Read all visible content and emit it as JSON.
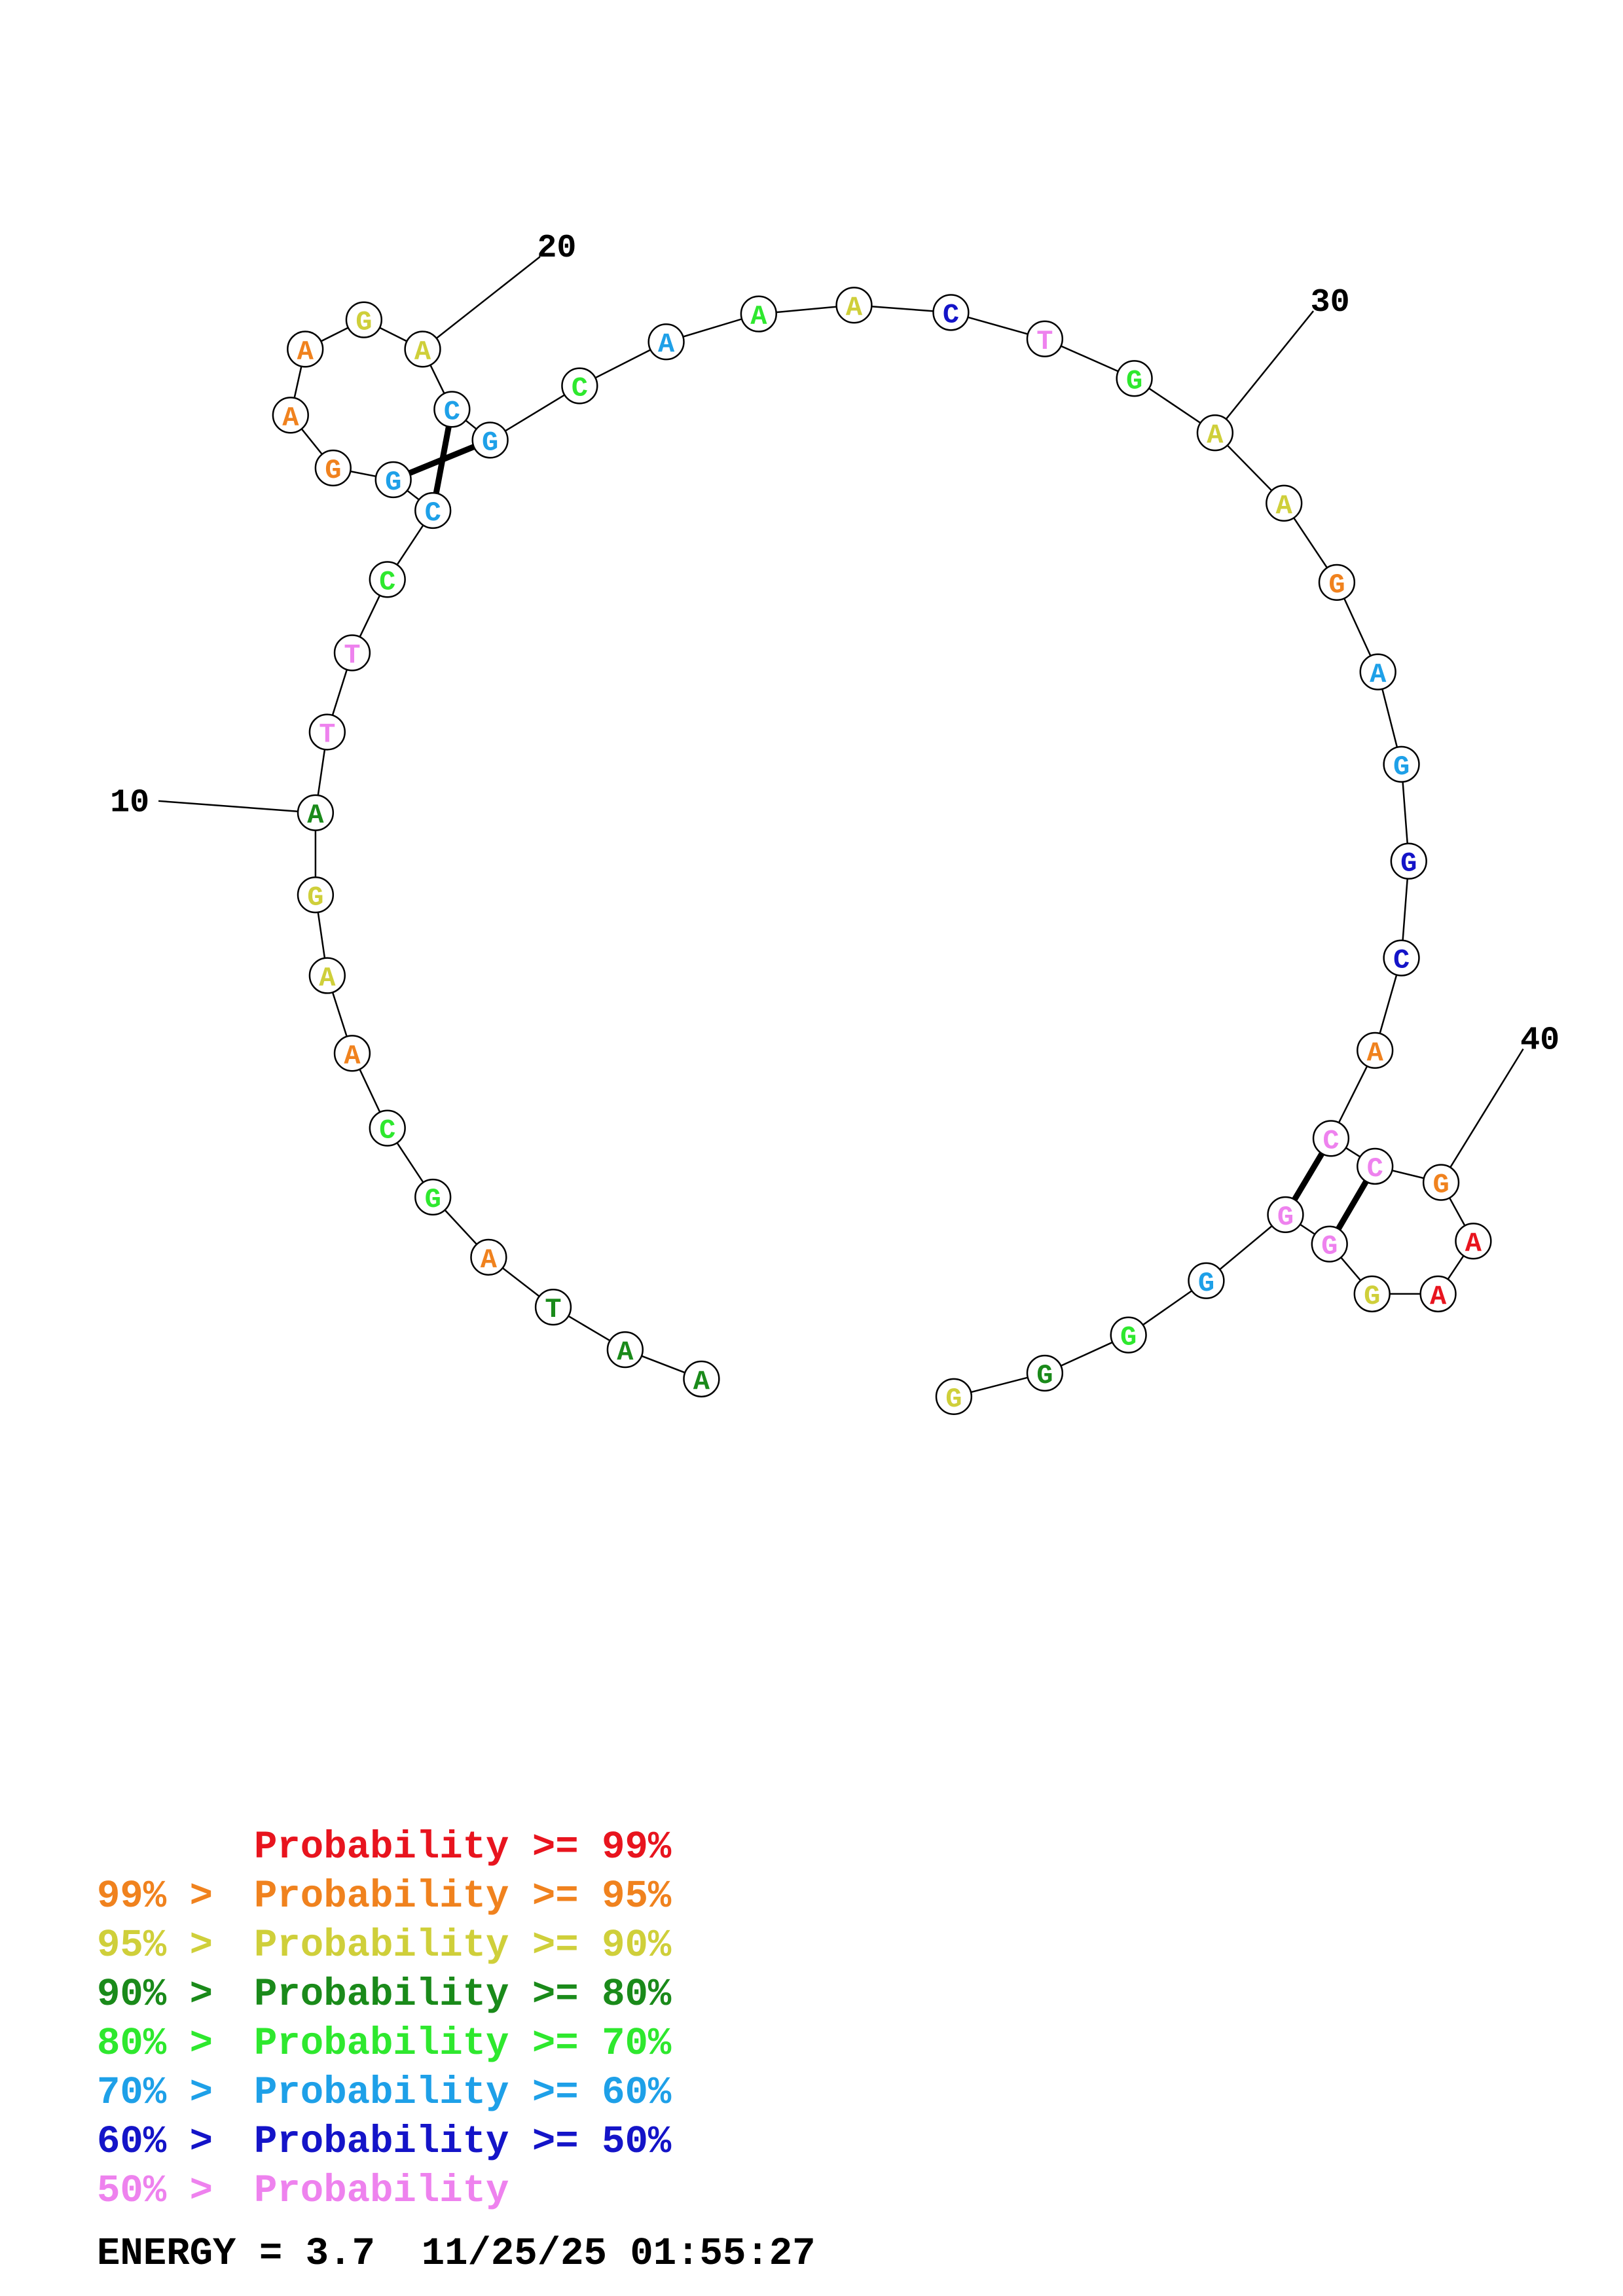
{
  "colors": {
    "p99": "#e8141e",
    "p95": "#f0821e",
    "p90": "#cfcf3a",
    "p80": "#1a8a1a",
    "p70": "#2ee82e",
    "p60": "#1ea0e8",
    "p50": "#1414c8",
    "plow": "#ee82ee"
  },
  "sequence": [
    {
      "n": 1,
      "base": "A",
      "c": "p80"
    },
    {
      "n": 2,
      "base": "A",
      "c": "p80"
    },
    {
      "n": 3,
      "base": "T",
      "c": "p80"
    },
    {
      "n": 4,
      "base": "A",
      "c": "p95"
    },
    {
      "n": 5,
      "base": "G",
      "c": "p70"
    },
    {
      "n": 6,
      "base": "C",
      "c": "p70"
    },
    {
      "n": 7,
      "base": "A",
      "c": "p95"
    },
    {
      "n": 8,
      "base": "A",
      "c": "p90"
    },
    {
      "n": 9,
      "base": "G",
      "c": "p90"
    },
    {
      "n": 10,
      "base": "A",
      "c": "p80"
    },
    {
      "n": 11,
      "base": "T",
      "c": "plow"
    },
    {
      "n": 12,
      "base": "T",
      "c": "plow"
    },
    {
      "n": 13,
      "base": "C",
      "c": "p70"
    },
    {
      "n": 14,
      "base": "C",
      "c": "p60"
    },
    {
      "n": 15,
      "base": "G",
      "c": "p60"
    },
    {
      "n": 16,
      "base": "G",
      "c": "p95"
    },
    {
      "n": 17,
      "base": "A",
      "c": "p95"
    },
    {
      "n": 18,
      "base": "A",
      "c": "p95"
    },
    {
      "n": 19,
      "base": "G",
      "c": "p90"
    },
    {
      "n": 20,
      "base": "A",
      "c": "p90"
    },
    {
      "n": 21,
      "base": "C",
      "c": "p60"
    },
    {
      "n": 22,
      "base": "G",
      "c": "p60"
    },
    {
      "n": 23,
      "base": "C",
      "c": "p70"
    },
    {
      "n": 24,
      "base": "A",
      "c": "p60"
    },
    {
      "n": 25,
      "base": "A",
      "c": "p70"
    },
    {
      "n": 26,
      "base": "A",
      "c": "p90"
    },
    {
      "n": 27,
      "base": "C",
      "c": "p50"
    },
    {
      "n": 28,
      "base": "T",
      "c": "plow"
    },
    {
      "n": 29,
      "base": "G",
      "c": "p70"
    },
    {
      "n": 30,
      "base": "A",
      "c": "p90"
    },
    {
      "n": 31,
      "base": "A",
      "c": "p90"
    },
    {
      "n": 32,
      "base": "G",
      "c": "p95"
    },
    {
      "n": 33,
      "base": "A",
      "c": "p60"
    },
    {
      "n": 34,
      "base": "G",
      "c": "p60"
    },
    {
      "n": 35,
      "base": "G",
      "c": "p50"
    },
    {
      "n": 36,
      "base": "C",
      "c": "p50"
    },
    {
      "n": 37,
      "base": "A",
      "c": "p95"
    },
    {
      "n": 38,
      "base": "C",
      "c": "plow"
    },
    {
      "n": 39,
      "base": "C",
      "c": "plow"
    },
    {
      "n": 40,
      "base": "G",
      "c": "p95"
    },
    {
      "n": 41,
      "base": "A",
      "c": "p99"
    },
    {
      "n": 42,
      "base": "A",
      "c": "p99"
    },
    {
      "n": 43,
      "base": "G",
      "c": "p90"
    },
    {
      "n": 44,
      "base": "G",
      "c": "plow"
    },
    {
      "n": 45,
      "base": "G",
      "c": "plow"
    },
    {
      "n": 46,
      "base": "G",
      "c": "p60"
    },
    {
      "n": 47,
      "base": "G",
      "c": "p70"
    },
    {
      "n": 48,
      "base": "G",
      "c": "p80"
    },
    {
      "n": 49,
      "base": "G",
      "c": "p90"
    }
  ],
  "pairs": [
    [
      14,
      21
    ],
    [
      15,
      22
    ],
    [
      38,
      45
    ],
    [
      39,
      44
    ]
  ],
  "index_labels": [
    {
      "n": 10,
      "text": "10"
    },
    {
      "n": 20,
      "text": "20"
    },
    {
      "n": 30,
      "text": "30"
    },
    {
      "n": 40,
      "text": "40"
    }
  ],
  "legend": [
    {
      "prefix": "",
      "text": "Probability >= 99%",
      "c": "p99"
    },
    {
      "prefix": "99% > ",
      "text": "Probability >= 95%",
      "c": "p95"
    },
    {
      "prefix": "95% > ",
      "text": "Probability >= 90%",
      "c": "p90"
    },
    {
      "prefix": "90% > ",
      "text": "Probability >= 80%",
      "c": "p80"
    },
    {
      "prefix": "80% > ",
      "text": "Probability >= 70%",
      "c": "p70"
    },
    {
      "prefix": "70% > ",
      "text": "Probability >= 60%",
      "c": "p60"
    },
    {
      "prefix": "60% > ",
      "text": "Probability >= 50%",
      "c": "p50"
    },
    {
      "prefix": "50% > ",
      "text": "Probability",
      "c": "plow"
    }
  ],
  "footer": {
    "energy": "ENERGY = 3.7",
    "timestamp": "11/25/25 01:55:27"
  }
}
